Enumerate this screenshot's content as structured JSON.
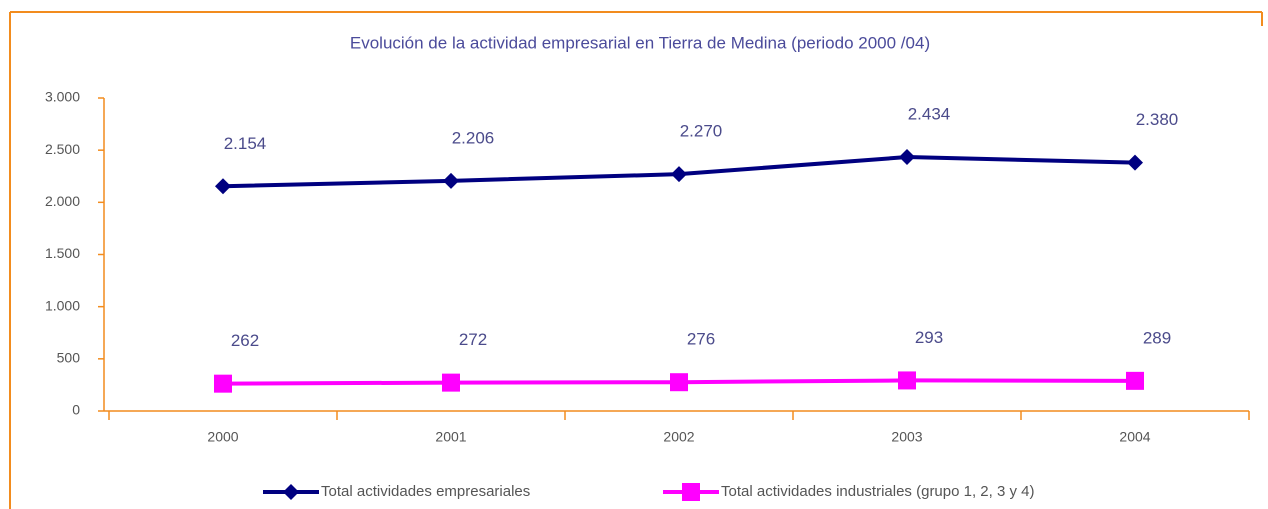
{
  "chart_data": {
    "type": "line",
    "title": "Evolución de la actividad empresarial en Tierra de Medina (periodo 2000 /04)",
    "categories": [
      "2000",
      "2001",
      "2002",
      "2003",
      "2004"
    ],
    "series": [
      {
        "name": "Total actividades empresariales",
        "color": "#000080",
        "marker": "diamond",
        "values": [
          2154,
          2206,
          2270,
          2434,
          2380
        ],
        "value_labels": [
          "2.154",
          "2.206",
          "2.270",
          "2.434",
          "2.380"
        ]
      },
      {
        "name": "Total actividades industriales (grupo 1, 2, 3 y 4)",
        "color": "#ff00ff",
        "marker": "square",
        "values": [
          262,
          272,
          276,
          293,
          289
        ],
        "value_labels": [
          "262",
          "272",
          "276",
          "293",
          "289"
        ]
      }
    ],
    "ylim": [
      0,
      3000
    ],
    "yticks": [
      0,
      500,
      {
        "value": 1000,
        "label": "1.000"
      },
      {
        "value": 1500,
        "label": "1.500"
      },
      {
        "value": 2000,
        "label": "2.000"
      },
      {
        "value": 2500,
        "label": "2.500"
      },
      {
        "value": 3000,
        "label": "3.000"
      }
    ],
    "grid": false,
    "legend": "bottom"
  }
}
